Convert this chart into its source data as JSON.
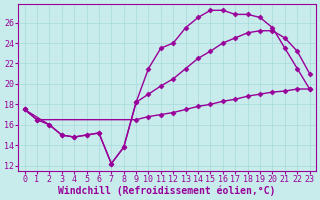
{
  "xlabel": "Windchill (Refroidissement éolien,°C)",
  "background_color": "#c8ecec",
  "line_color": "#990099",
  "grid_color": "#a8dada",
  "xlim": [
    -0.5,
    23.5
  ],
  "ylim": [
    11.5,
    27.8
  ],
  "xticks": [
    0,
    1,
    2,
    3,
    4,
    5,
    6,
    7,
    8,
    9,
    10,
    11,
    12,
    13,
    14,
    15,
    16,
    17,
    18,
    19,
    20,
    21,
    22,
    23
  ],
  "yticks": [
    12,
    14,
    16,
    18,
    20,
    22,
    24,
    26
  ],
  "line1_x": [
    0,
    1,
    2,
    3,
    4,
    5,
    6,
    7,
    8,
    9,
    10,
    11,
    12,
    13,
    14,
    15,
    16,
    17,
    18,
    19,
    20,
    21,
    22,
    23
  ],
  "line1_y": [
    17.5,
    16.5,
    16.0,
    15.0,
    14.8,
    15.0,
    15.2,
    12.2,
    13.8,
    18.2,
    21.5,
    23.5,
    24.0,
    25.5,
    26.5,
    27.2,
    27.2,
    26.8,
    26.8,
    26.5,
    25.5,
    23.5,
    21.5,
    19.5
  ],
  "line2_x": [
    0,
    2,
    3,
    4,
    5,
    6,
    7,
    8,
    9,
    10,
    11,
    12,
    13,
    14,
    15,
    16,
    17,
    18,
    19,
    20,
    21,
    22,
    23
  ],
  "line2_y": [
    17.5,
    16.0,
    15.0,
    14.8,
    15.0,
    15.2,
    12.2,
    13.8,
    18.2,
    19.0,
    19.8,
    20.5,
    21.5,
    22.5,
    23.2,
    24.0,
    24.5,
    25.0,
    25.2,
    25.2,
    24.5,
    23.2,
    21.0
  ],
  "line3_x": [
    0,
    1,
    9,
    10,
    11,
    12,
    13,
    14,
    15,
    16,
    17,
    18,
    19,
    20,
    21,
    22,
    23
  ],
  "line3_y": [
    17.5,
    16.5,
    16.5,
    16.8,
    17.0,
    17.2,
    17.5,
    17.8,
    18.0,
    18.3,
    18.5,
    18.8,
    19.0,
    19.2,
    19.3,
    19.5,
    19.5
  ],
  "marker": "D",
  "markersize": 2.5,
  "linewidth": 1.0,
  "tick_fontsize": 6,
  "xlabel_fontsize": 7
}
